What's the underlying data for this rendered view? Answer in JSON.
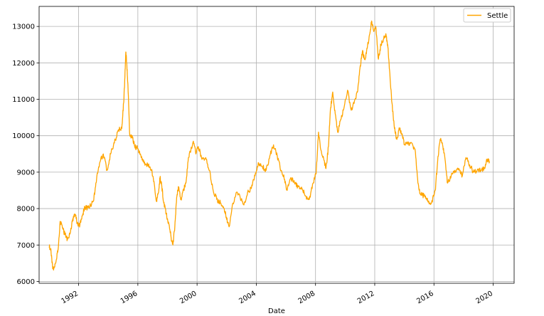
{
  "chart_data": {
    "type": "line",
    "xlabel": "Date",
    "ylabel": "",
    "xlim": [
      "1989-05-01",
      "2021-06-01"
    ],
    "ylim": [
      5950,
      13550
    ],
    "grid": true,
    "legend_position": "top-right",
    "y_ticks": [
      6000,
      7000,
      8000,
      9000,
      10000,
      11000,
      12000,
      13000
    ],
    "x_ticks": [
      {
        "date": "1992-01-01",
        "label": "1992"
      },
      {
        "date": "1996-01-01",
        "label": "1996"
      },
      {
        "date": "2000-01-01",
        "label": "2000"
      },
      {
        "date": "2004-01-01",
        "label": "2004"
      },
      {
        "date": "2008-01-01",
        "label": "2008"
      },
      {
        "date": "2012-01-01",
        "label": "2012"
      },
      {
        "date": "2016-01-01",
        "label": "2016"
      },
      {
        "date": "2020-01-01",
        "label": "2020"
      }
    ],
    "series": [
      {
        "name": "Settle",
        "color": "#ffa500",
        "points": [
          [
            "1990-01-02",
            6950
          ],
          [
            "1990-02-15",
            6900
          ],
          [
            "1990-04-01",
            6350
          ],
          [
            "1990-05-15",
            6400
          ],
          [
            "1990-07-01",
            6600
          ],
          [
            "1990-08-15",
            6900
          ],
          [
            "1990-10-01",
            7650
          ],
          [
            "1990-11-15",
            7550
          ],
          [
            "1991-01-01",
            7350
          ],
          [
            "1991-02-15",
            7250
          ],
          [
            "1991-04-01",
            7150
          ],
          [
            "1991-06-01",
            7300
          ],
          [
            "1991-08-01",
            7650
          ],
          [
            "1991-10-01",
            7850
          ],
          [
            "1991-12-01",
            7600
          ],
          [
            "1992-02-01",
            7550
          ],
          [
            "1992-04-01",
            7800
          ],
          [
            "1992-06-01",
            8050
          ],
          [
            "1992-08-01",
            8000
          ],
          [
            "1992-10-01",
            8050
          ],
          [
            "1993-01-01",
            8200
          ],
          [
            "1993-03-01",
            8700
          ],
          [
            "1993-06-01",
            9250
          ],
          [
            "1993-09-01",
            9500
          ],
          [
            "1993-12-01",
            9050
          ],
          [
            "1994-03-01",
            9500
          ],
          [
            "1994-06-01",
            9800
          ],
          [
            "1994-09-01",
            10150
          ],
          [
            "1994-12-01",
            10200
          ],
          [
            "1995-01-15",
            10900
          ],
          [
            "1995-02-15",
            11600
          ],
          [
            "1995-03-10",
            12300
          ],
          [
            "1995-04-01",
            12000
          ],
          [
            "1995-05-01",
            11400
          ],
          [
            "1995-06-15",
            10000
          ],
          [
            "1995-08-15",
            10000
          ],
          [
            "1995-10-15",
            9700
          ],
          [
            "1996-01-01",
            9650
          ],
          [
            "1996-03-01",
            9500
          ],
          [
            "1996-06-01",
            9250
          ],
          [
            "1996-09-01",
            9200
          ],
          [
            "1996-12-01",
            9050
          ],
          [
            "1997-02-01",
            8750
          ],
          [
            "1997-04-01",
            8200
          ],
          [
            "1997-05-15",
            8400
          ],
          [
            "1997-07-01",
            8850
          ],
          [
            "1997-08-15",
            8600
          ],
          [
            "1997-10-01",
            8150
          ],
          [
            "1997-12-01",
            7850
          ],
          [
            "1998-02-01",
            7600
          ],
          [
            "1998-04-01",
            7200
          ],
          [
            "1998-05-15",
            7000
          ],
          [
            "1998-07-01",
            7500
          ],
          [
            "1998-08-15",
            8300
          ],
          [
            "1998-10-01",
            8600
          ],
          [
            "1998-12-01",
            8250
          ],
          [
            "1999-02-01",
            8500
          ],
          [
            "1999-04-01",
            8700
          ],
          [
            "1999-06-01",
            9400
          ],
          [
            "1999-08-01",
            9600
          ],
          [
            "1999-10-01",
            9850
          ],
          [
            "1999-12-01",
            9500
          ],
          [
            "2000-02-01",
            9700
          ],
          [
            "2000-05-01",
            9350
          ],
          [
            "2000-08-01",
            9400
          ],
          [
            "2000-11-01",
            9050
          ],
          [
            "2001-02-01",
            8500
          ],
          [
            "2001-05-01",
            8250
          ],
          [
            "2001-08-01",
            8150
          ],
          [
            "2001-11-01",
            8000
          ],
          [
            "2002-01-01",
            7700
          ],
          [
            "2002-03-01",
            7500
          ],
          [
            "2002-06-01",
            8150
          ],
          [
            "2002-09-01",
            8450
          ],
          [
            "2002-12-01",
            8300
          ],
          [
            "2003-03-01",
            8100
          ],
          [
            "2003-06-01",
            8450
          ],
          [
            "2003-09-01",
            8550
          ],
          [
            "2003-12-01",
            8900
          ],
          [
            "2004-03-01",
            9250
          ],
          [
            "2004-06-01",
            9150
          ],
          [
            "2004-09-01",
            9050
          ],
          [
            "2004-12-01",
            9450
          ],
          [
            "2005-03-01",
            9750
          ],
          [
            "2005-06-01",
            9450
          ],
          [
            "2005-09-01",
            9050
          ],
          [
            "2005-12-01",
            8800
          ],
          [
            "2006-02-01",
            8500
          ],
          [
            "2006-05-01",
            8850
          ],
          [
            "2006-08-01",
            8700
          ],
          [
            "2006-11-01",
            8600
          ],
          [
            "2007-02-01",
            8550
          ],
          [
            "2007-05-01",
            8350
          ],
          [
            "2007-08-01",
            8250
          ],
          [
            "2007-11-01",
            8700
          ],
          [
            "2008-01-15",
            8950
          ],
          [
            "2008-03-15",
            10100
          ],
          [
            "2008-05-15",
            9600
          ],
          [
            "2008-07-15",
            9400
          ],
          [
            "2008-09-15",
            9100
          ],
          [
            "2008-11-15",
            9700
          ],
          [
            "2009-01-01",
            10700
          ],
          [
            "2009-03-01",
            11200
          ],
          [
            "2009-05-01",
            10600
          ],
          [
            "2009-07-01",
            10100
          ],
          [
            "2009-09-01",
            10400
          ],
          [
            "2009-12-01",
            10750
          ],
          [
            "2010-03-01",
            11250
          ],
          [
            "2010-06-01",
            10700
          ],
          [
            "2010-09-01",
            11000
          ],
          [
            "2010-11-01",
            11200
          ],
          [
            "2011-01-01",
            11850
          ],
          [
            "2011-03-01",
            12300
          ],
          [
            "2011-05-01",
            12100
          ],
          [
            "2011-07-01",
            12400
          ],
          [
            "2011-09-01",
            12800
          ],
          [
            "2011-10-15",
            13150
          ],
          [
            "2011-12-01",
            12900
          ],
          [
            "2012-02-01",
            12950
          ],
          [
            "2012-04-01",
            12100
          ],
          [
            "2012-06-01",
            12500
          ],
          [
            "2012-08-01",
            12650
          ],
          [
            "2012-10-01",
            12800
          ],
          [
            "2012-11-15",
            12500
          ],
          [
            "2013-01-01",
            11800
          ],
          [
            "2013-03-01",
            10900
          ],
          [
            "2013-05-01",
            10200
          ],
          [
            "2013-07-01",
            9900
          ],
          [
            "2013-09-01",
            10200
          ],
          [
            "2013-11-01",
            10050
          ],
          [
            "2014-01-01",
            9750
          ],
          [
            "2014-04-01",
            9800
          ],
          [
            "2014-07-01",
            9800
          ],
          [
            "2014-10-01",
            9550
          ],
          [
            "2014-12-01",
            8700
          ],
          [
            "2015-02-01",
            8400
          ],
          [
            "2015-05-01",
            8350
          ],
          [
            "2015-08-01",
            8200
          ],
          [
            "2015-11-01",
            8150
          ],
          [
            "2016-02-01",
            8500
          ],
          [
            "2016-04-01",
            9300
          ],
          [
            "2016-06-01",
            9900
          ],
          [
            "2016-08-01",
            9750
          ],
          [
            "2016-10-01",
            9350
          ],
          [
            "2016-12-01",
            8700
          ],
          [
            "2017-03-01",
            8900
          ],
          [
            "2017-06-01",
            9050
          ],
          [
            "2017-09-01",
            9100
          ],
          [
            "2017-12-01",
            8900
          ],
          [
            "2018-03-01",
            9400
          ],
          [
            "2018-06-01",
            9200
          ],
          [
            "2018-09-01",
            9000
          ],
          [
            "2018-12-01",
            9050
          ],
          [
            "2019-03-01",
            9050
          ],
          [
            "2019-06-01",
            9100
          ],
          [
            "2019-08-01",
            9350
          ],
          [
            "2019-10-01",
            9300
          ]
        ]
      }
    ]
  }
}
